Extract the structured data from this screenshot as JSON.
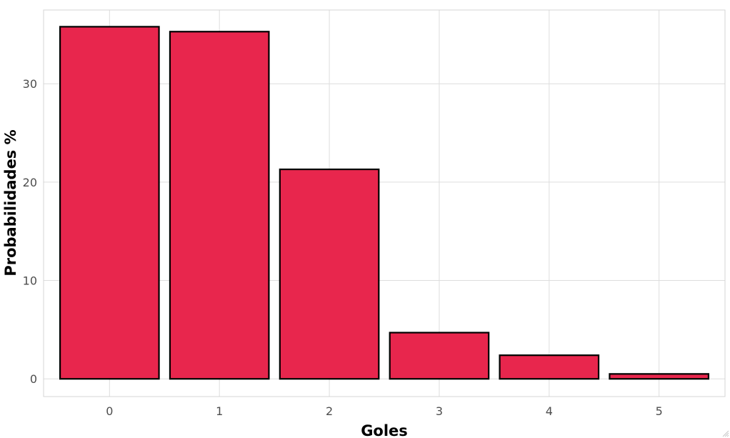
{
  "chart_data": {
    "type": "bar",
    "categories": [
      "0",
      "1",
      "2",
      "3",
      "4",
      "5"
    ],
    "values": [
      35.8,
      35.3,
      21.3,
      4.7,
      2.4,
      0.5
    ],
    "title": "",
    "xlabel": "Goles",
    "ylabel": "Probabilidades %",
    "ylim": [
      -1.8,
      37.5
    ],
    "yticks": [
      0,
      10,
      20,
      30
    ],
    "grid": true,
    "legend": "none",
    "colors": {
      "bar_fill": "#e8264d",
      "bar_stroke": "#000000",
      "grid": "#dddddd"
    }
  }
}
